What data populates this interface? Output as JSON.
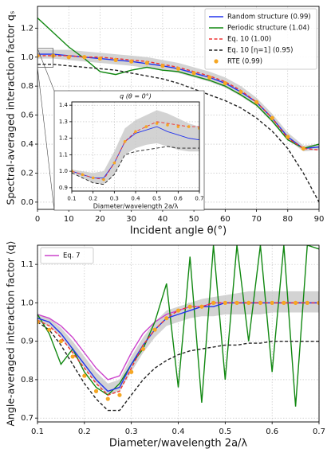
{
  "chart_data": [
    {
      "type": "line",
      "xlabel": "Incident angle θ(°)",
      "ylabel": "Spectral-averaged interaction factor qₛ",
      "x": [
        0,
        5,
        10,
        15,
        20,
        25,
        30,
        35,
        40,
        45,
        50,
        55,
        60,
        65,
        70,
        75,
        80,
        85,
        90
      ],
      "xlim": [
        0,
        90
      ],
      "xticks": [
        0,
        10,
        20,
        30,
        40,
        50,
        60,
        70,
        80,
        90
      ],
      "ylim": [
        -0.05,
        1.35
      ],
      "yticks": [
        {
          "value": 0,
          "label": "0.0"
        },
        0.2,
        0.4,
        0.6,
        0.8,
        {
          "value": 1,
          "label": "1.0"
        },
        1.2
      ],
      "grid": true,
      "legend": "upper right",
      "band": {
        "color": "#c8c8c8",
        "lower": [
          0.99,
          0.99,
          0.98,
          0.97,
          0.96,
          0.95,
          0.94,
          0.925,
          0.91,
          0.89,
          0.86,
          0.83,
          0.79,
          0.73,
          0.66,
          0.55,
          0.43,
          0.35,
          0.36
        ],
        "upper": [
          1.05,
          1.05,
          1.05,
          1.04,
          1.03,
          1.02,
          1.01,
          1.0,
          0.98,
          0.96,
          0.93,
          0.9,
          0.86,
          0.8,
          0.72,
          0.61,
          0.48,
          0.39,
          0.4
        ]
      },
      "series": [
        {
          "name": "Random structure (0.99)",
          "color": "#2233ee",
          "style": "solid",
          "values": [
            1.02,
            1.02,
            1.01,
            1.0,
            0.99,
            0.98,
            0.97,
            0.955,
            0.94,
            0.92,
            0.89,
            0.86,
            0.82,
            0.76,
            0.69,
            0.58,
            0.45,
            0.37,
            0.38
          ]
        },
        {
          "name": "Periodic structure (1.04)",
          "color": "#118811",
          "style": "solid",
          "values": [
            1.27,
            1.17,
            1.07,
            0.99,
            0.9,
            0.88,
            0.91,
            0.93,
            0.91,
            0.9,
            0.87,
            0.84,
            0.8,
            0.74,
            0.67,
            0.56,
            0.43,
            0.37,
            0.4
          ]
        },
        {
          "name": "Eq. 10 (1.00)",
          "color": "#ee3333",
          "style": "dashed",
          "values": [
            1.01,
            1.01,
            1.01,
            1.0,
            1.0,
            0.99,
            0.98,
            0.97,
            0.95,
            0.93,
            0.9,
            0.87,
            0.83,
            0.77,
            0.69,
            0.58,
            0.44,
            0.37,
            0.36
          ]
        },
        {
          "name": "Eq. 10 [η=1] (0.95)",
          "color": "#222222",
          "style": "dashed",
          "values": [
            0.95,
            0.95,
            0.94,
            0.93,
            0.92,
            0.91,
            0.89,
            0.87,
            0.85,
            0.82,
            0.78,
            0.74,
            0.7,
            0.65,
            0.58,
            0.49,
            0.37,
            0.2,
            0
          ]
        },
        {
          "name": "RTE (0.99)",
          "color": "#f5a623",
          "style": "dots",
          "values": [
            1.01,
            1.01,
            1.0,
            1.0,
            0.99,
            0.98,
            0.97,
            0.96,
            0.94,
            0.92,
            0.89,
            0.86,
            0.82,
            0.76,
            0.69,
            0.58,
            0.45,
            0.37,
            null
          ]
        }
      ]
    },
    {
      "type": "line",
      "title": "q (θ = 0°)",
      "xlabel": "Diameter/wavelength 2a/λ",
      "x": [
        0.1,
        0.15,
        0.2,
        0.25,
        0.3,
        0.35,
        0.4,
        0.45,
        0.5,
        0.55,
        0.6,
        0.65,
        0.7
      ],
      "xlim": [
        0.1,
        0.7
      ],
      "xticks": [
        0.1,
        0.2,
        0.3,
        0.4,
        0.5,
        0.6,
        0.7
      ],
      "ylim": [
        0.88,
        1.42
      ],
      "yticks": [
        0.9,
        {
          "value": 1,
          "label": "1.0"
        },
        1.1,
        1.2,
        1.3,
        1.4
      ],
      "grid": true,
      "band": {
        "color": "#c8c8c8",
        "lower": [
          0.99,
          0.96,
          0.93,
          0.92,
          0.98,
          1.1,
          1.14,
          1.16,
          1.17,
          1.15,
          1.13,
          1.12,
          1.12
        ],
        "upper": [
          1.01,
          1.0,
          0.99,
          1.0,
          1.12,
          1.26,
          1.31,
          1.34,
          1.37,
          1.35,
          1.32,
          1.29,
          1.27
        ]
      },
      "series": [
        {
          "color": "#2233ee",
          "style": "solid",
          "values": [
            1.0,
            0.98,
            0.96,
            0.96,
            1.05,
            1.18,
            1.23,
            1.25,
            1.27,
            1.24,
            1.22,
            1.2,
            1.19
          ]
        },
        {
          "color": "#ee3333",
          "style": "dashed",
          "values": [
            1.0,
            0.98,
            0.96,
            0.95,
            1.05,
            1.18,
            1.24,
            1.27,
            1.3,
            1.29,
            1.28,
            1.27,
            1.27
          ]
        },
        {
          "color": "#222222",
          "style": "dashed",
          "values": [
            0.99,
            0.96,
            0.93,
            0.92,
            0.98,
            1.1,
            1.12,
            1.13,
            1.14,
            1.15,
            1.14,
            1.14,
            1.14
          ]
        },
        {
          "color": "#f5a623",
          "style": "dots",
          "values": [
            1.0,
            0.98,
            0.96,
            0.95,
            1.05,
            1.18,
            1.24,
            1.27,
            1.29,
            1.28,
            1.27,
            1.27,
            1.26
          ]
        }
      ]
    },
    {
      "type": "line",
      "xlabel": "Diameter/wavelength 2a/λ",
      "ylabel": "Angle-averaged interaction factor ⟨q⟩",
      "x": [
        0.1,
        0.125,
        0.15,
        0.175,
        0.2,
        0.225,
        0.25,
        0.275,
        0.3,
        0.325,
        0.35,
        0.375,
        0.4,
        0.425,
        0.45,
        0.475,
        0.5,
        0.525,
        0.55,
        0.575,
        0.6,
        0.625,
        0.65,
        0.675,
        0.7
      ],
      "xlim": [
        0.1,
        0.7
      ],
      "xticks": [
        0.1,
        0.2,
        0.3,
        0.4,
        0.5,
        0.6,
        0.7
      ],
      "ylim": [
        0.69,
        1.15
      ],
      "yticks": [
        0.7,
        0.8,
        0.9,
        {
          "value": 1,
          "label": "1.0"
        },
        1.1
      ],
      "grid": true,
      "legend": "upper left",
      "band": {
        "color": "#c8c8c8",
        "lower": [
          0.95,
          0.94,
          0.91,
          0.87,
          0.83,
          0.79,
          0.76,
          0.77,
          0.82,
          0.87,
          0.91,
          0.94,
          0.95,
          0.96,
          0.965,
          0.965,
          0.97,
          0.97,
          0.97,
          0.97,
          0.975,
          0.975,
          0.975,
          0.975,
          0.975
        ],
        "upper": [
          0.97,
          0.96,
          0.935,
          0.9,
          0.86,
          0.82,
          0.79,
          0.8,
          0.86,
          0.91,
          0.95,
          0.98,
          0.99,
          1.0,
          1.01,
          1.015,
          1.02,
          1.025,
          1.03,
          1.03,
          1.03,
          1.03,
          1.03,
          1.03,
          1.03
        ]
      },
      "series": [
        {
          "name": "Eq. 7",
          "color": "#cc44cc",
          "style": "solid",
          "values": [
            0.97,
            0.96,
            0.94,
            0.91,
            0.87,
            0.83,
            0.8,
            0.81,
            0.87,
            0.92,
            0.95,
            0.97,
            0.98,
            0.99,
            0.99,
            1.0,
            1.0,
            1.0,
            1.0,
            1.0,
            1.0,
            1.0,
            1.0,
            1.0,
            1.0
          ]
        },
        {
          "color": "#118811",
          "style": "solid",
          "values": [
            0.97,
            0.92,
            0.84,
            0.88,
            0.82,
            0.78,
            0.76,
            0.79,
            0.84,
            0.88,
            0.95,
            1.05,
            0.78,
            1.12,
            0.74,
            1.15,
            0.8,
            1.15,
            0.9,
            1.15,
            0.82,
            1.15,
            0.73,
            1.15,
            1.14
          ]
        },
        {
          "color": "#2233ee",
          "style": "solid",
          "values": [
            0.96,
            0.95,
            0.92,
            0.88,
            0.84,
            0.8,
            0.77,
            0.78,
            0.84,
            0.89,
            0.93,
            0.96,
            0.97,
            0.98,
            0.99,
            0.99,
            1.0,
            1.0,
            1.0,
            1.0,
            1.0,
            1.0,
            1.0,
            1.0,
            1.0
          ]
        },
        {
          "color": "#ee3333",
          "style": "dashed",
          "values": [
            0.955,
            0.94,
            0.91,
            0.87,
            0.83,
            0.79,
            0.76,
            0.77,
            0.83,
            0.89,
            0.93,
            0.96,
            0.98,
            0.99,
            0.99,
            1.0,
            1.0,
            1.0,
            1.0,
            1.0,
            1.0,
            1.0,
            1.0,
            1.0,
            1.0
          ]
        },
        {
          "color": "#222222",
          "style": "dashed",
          "values": [
            0.95,
            0.93,
            0.89,
            0.84,
            0.79,
            0.75,
            0.72,
            0.72,
            0.76,
            0.8,
            0.83,
            0.85,
            0.865,
            0.875,
            0.88,
            0.885,
            0.89,
            0.89,
            0.895,
            0.895,
            0.9,
            0.9,
            0.9,
            0.9,
            0.9
          ]
        },
        {
          "color": "#f5a623",
          "style": "dots",
          "values": [
            0.95,
            0.93,
            0.9,
            0.86,
            0.81,
            0.77,
            0.75,
            0.76,
            0.82,
            0.88,
            0.93,
            0.96,
            0.98,
            0.99,
            0.99,
            1.0,
            1.0,
            1.0,
            1.0,
            1.0,
            1.0,
            1.0,
            1.0,
            1.0,
            1.0
          ]
        }
      ]
    }
  ]
}
